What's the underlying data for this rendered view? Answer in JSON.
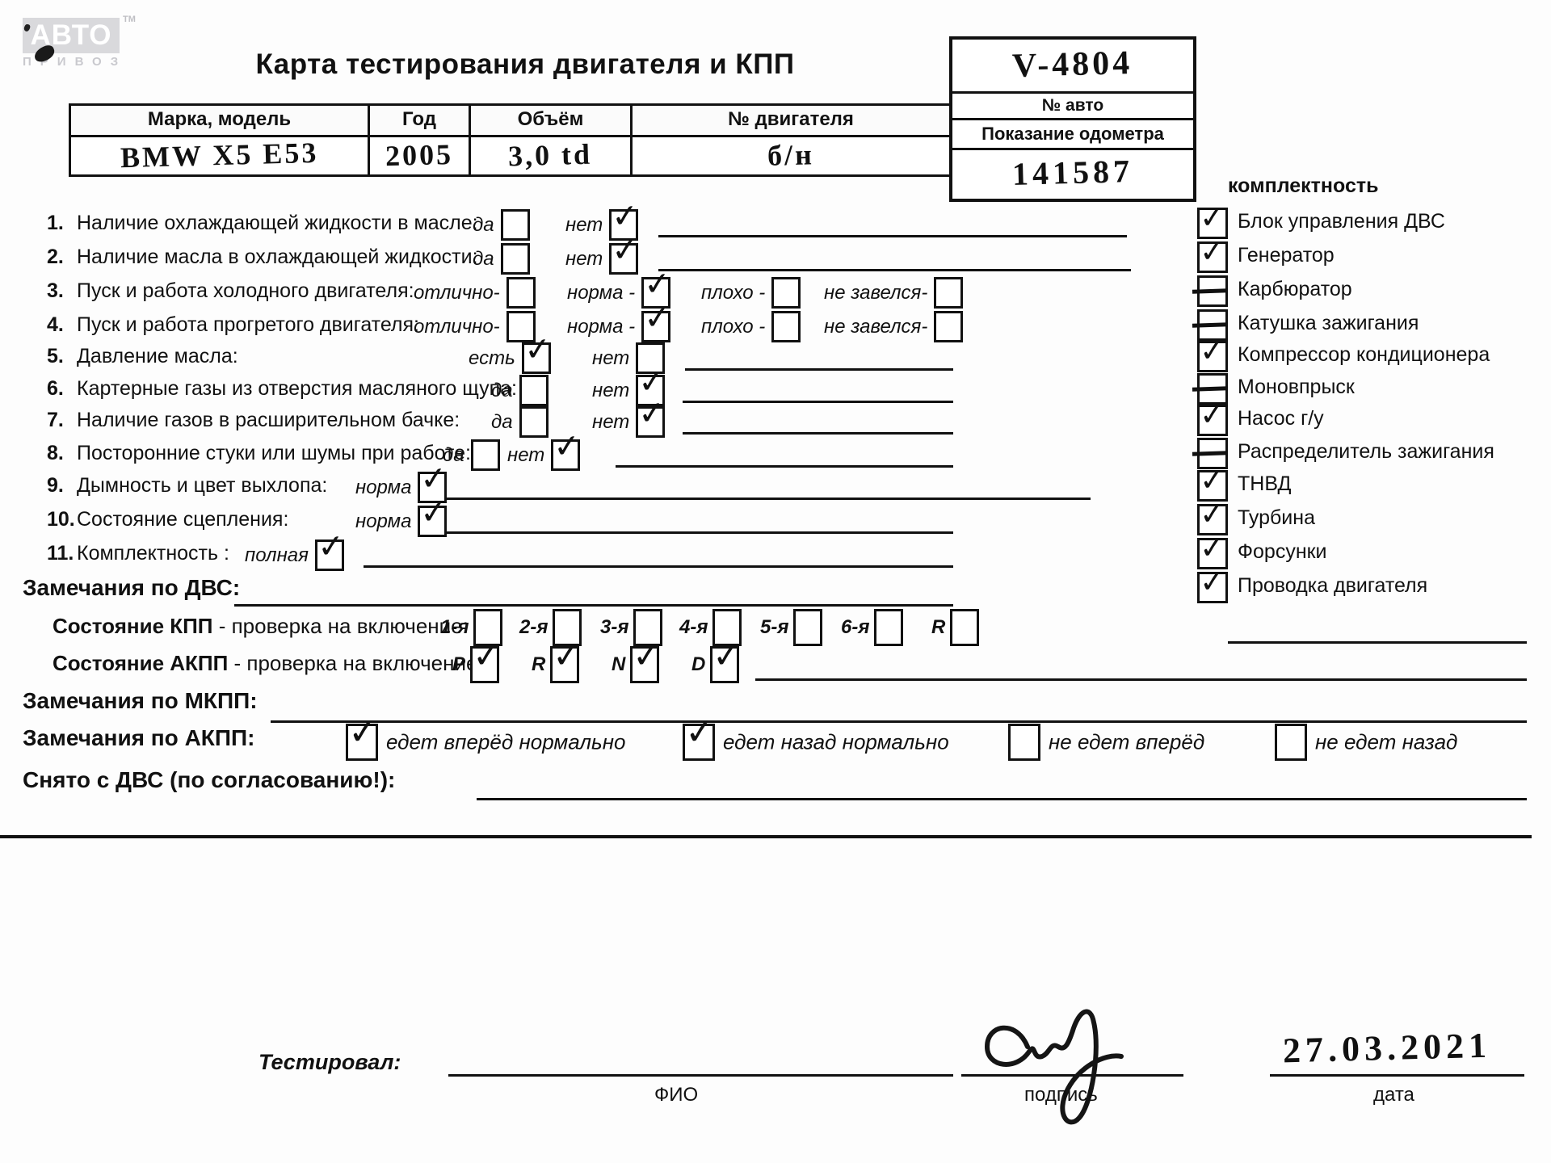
{
  "logo": {
    "top": "АВТО",
    "bottom": "ПРИВОЗ",
    "tm": "TM"
  },
  "title": "Карта тестирования двигателя  и КПП",
  "id_box": {
    "number": "V-4804",
    "number_label": "№ авто",
    "odometer_label": "Показание одометра",
    "odometer_value": "141587"
  },
  "vehicle": {
    "headers": [
      "Марка, модель",
      "Год",
      "Объём",
      "№ двигателя"
    ],
    "values": [
      "BMW X5 E53",
      "2005",
      "3,0 td",
      "б/н"
    ]
  },
  "completeness": {
    "title": "комплектность",
    "items": [
      {
        "label": "Блок управления ДВС",
        "state": "check"
      },
      {
        "label": "Генератор",
        "state": "check"
      },
      {
        "label": "Карбюратор",
        "state": "dash"
      },
      {
        "label": "Катушка зажигания",
        "state": "dash"
      },
      {
        "label": "Компрессор кондиционера",
        "state": "check"
      },
      {
        "label": "Моновпрыск",
        "state": "dash"
      },
      {
        "label": "Насос г/у",
        "state": "check"
      },
      {
        "label": "Распределитель зажигания",
        "state": "dash"
      },
      {
        "label": "ТНВД",
        "state": "check"
      },
      {
        "label": "Турбина",
        "state": "check"
      },
      {
        "label": "Форсунки",
        "state": "check"
      },
      {
        "label": "Проводка двигателя",
        "state": "check"
      }
    ]
  },
  "checklist": [
    {
      "num": "1.",
      "label": "Наличие охлаждающей жидкости в масле:",
      "options": [
        {
          "label": "да",
          "checked": false
        },
        {
          "label": "нет",
          "checked": true
        }
      ]
    },
    {
      "num": "2.",
      "label": "Наличие масла в охлаждающей жидкости:",
      "options": [
        {
          "label": "да",
          "checked": false
        },
        {
          "label": "нет",
          "checked": true
        }
      ]
    },
    {
      "num": "3.",
      "label": "Пуск и работа холодного двигателя:",
      "options": [
        {
          "label": "отлично-",
          "checked": false
        },
        {
          "label": "норма -",
          "checked": true
        },
        {
          "label": "плохо -",
          "checked": false
        },
        {
          "label": "не завелся-",
          "checked": false
        }
      ]
    },
    {
      "num": "4.",
      "label": "Пуск и работа прогретого двигателя:",
      "options": [
        {
          "label": "отлично-",
          "checked": false
        },
        {
          "label": "норма -",
          "checked": true
        },
        {
          "label": "плохо -",
          "checked": false
        },
        {
          "label": "не завелся-",
          "checked": false
        }
      ]
    },
    {
      "num": "5.",
      "label": "Давление масла:",
      "options": [
        {
          "label": "есть",
          "checked": true
        },
        {
          "label": "нет",
          "checked": false
        }
      ]
    },
    {
      "num": "6.",
      "label": "Картерные газы из отверстия масляного щупа:",
      "options": [
        {
          "label": "да",
          "checked": false
        },
        {
          "label": "нет",
          "checked": true
        }
      ]
    },
    {
      "num": "7.",
      "label": "Наличие газов в расширительном бачке:",
      "options": [
        {
          "label": "да",
          "checked": false
        },
        {
          "label": "нет",
          "checked": true
        }
      ]
    },
    {
      "num": "8.",
      "label": "Посторонние стуки или шумы при работе:",
      "options": [
        {
          "label": "да",
          "checked": false
        },
        {
          "label": "нет",
          "checked": true
        }
      ]
    },
    {
      "num": "9.",
      "label": "Дымность и цвет выхлопа:",
      "options": [
        {
          "label": "норма",
          "checked": true
        }
      ]
    },
    {
      "num": "10.",
      "label": "Состояние сцепления:",
      "options": [
        {
          "label": "норма",
          "checked": true
        }
      ]
    },
    {
      "num": "11.",
      "label": "Комплектность :",
      "options": [
        {
          "label": "полная",
          "checked": true
        }
      ]
    }
  ],
  "dvs_remarks_label": "Замечания по ДВС:",
  "kpp": {
    "label_bold": "Состояние КПП",
    "label_rest": " - проверка на включение:",
    "gears": [
      {
        "label": "1-я",
        "checked": false
      },
      {
        "label": "2-я",
        "checked": false
      },
      {
        "label": "3-я",
        "checked": false
      },
      {
        "label": "4-я",
        "checked": false
      },
      {
        "label": "5-я",
        "checked": false
      },
      {
        "label": "6-я",
        "checked": false
      },
      {
        "label": "R",
        "checked": false
      }
    ]
  },
  "akpp": {
    "label_bold": "Состояние АКПП",
    "label_rest": " - проверка на включение:",
    "gears": [
      {
        "label": "P",
        "checked": true
      },
      {
        "label": "R",
        "checked": true
      },
      {
        "label": "N",
        "checked": true
      },
      {
        "label": "D",
        "checked": true
      }
    ]
  },
  "mkpp_remarks_label": "Замечания по МКПП:",
  "akpp_remarks": {
    "label": "Замечания по АКПП:",
    "options": [
      {
        "label": "едет вперёд нормально",
        "checked": true
      },
      {
        "label": "едет назад нормально",
        "checked": true
      },
      {
        "label": "не едет вперёд",
        "checked": false
      },
      {
        "label": "не едет назад",
        "checked": false
      }
    ]
  },
  "removed_label": "Снято с ДВС (по согласованию!):",
  "footer": {
    "tested_by_label": "Тестировал:",
    "fio_label": "ФИО",
    "signature_label": "подпись",
    "date_value": "27.03.2021",
    "date_label": "дата"
  }
}
